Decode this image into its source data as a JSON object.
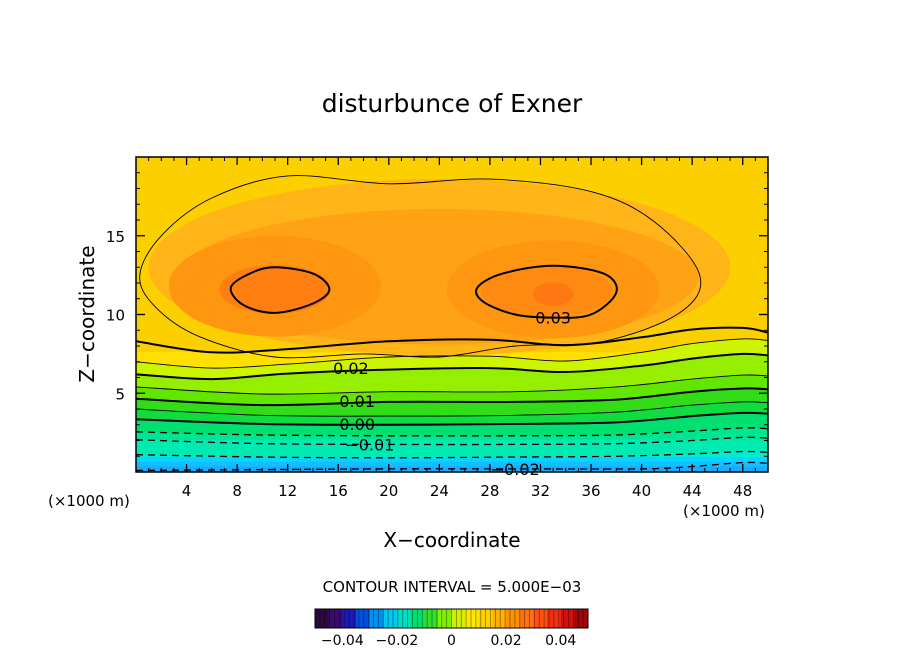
{
  "chart_data": {
    "type": "heatmap",
    "title": "disturbunce of Exner",
    "xlabel": "X−coordinate",
    "ylabel": "Z−coordinate",
    "x_unit_left": "(×1000 m)",
    "x_unit_right": "(×1000 m)",
    "xlim": [
      0,
      50
    ],
    "ylim": [
      0,
      20
    ],
    "x_ticks": [
      "4",
      "8",
      "12",
      "16",
      "20",
      "24",
      "28",
      "32",
      "36",
      "40",
      "44",
      "48"
    ],
    "y_ticks": [
      "5",
      "10",
      "15"
    ],
    "contour_interval_text": "CONTOUR INTERVAL = 5.000E−03",
    "contour_labels": [
      "0.03",
      "0.02",
      "0.01",
      "0.00",
      "−0.01",
      "−0.02"
    ],
    "colorbar": {
      "range": [
        -0.05,
        0.05
      ],
      "tick_labels": [
        "−0.04",
        "−0.02",
        "0",
        "0.02",
        "0.04"
      ],
      "colors": [
        "#2b0a3d",
        "#3a0a6e",
        "#1c1cb5",
        "#0050e0",
        "#0090f0",
        "#00c8f0",
        "#00e0c0",
        "#00e070",
        "#30e030",
        "#80f000",
        "#d0f000",
        "#ffe800",
        "#ffd000",
        "#ffb000",
        "#ff9000",
        "#ff7010",
        "#ff5010",
        "#f03010",
        "#d01010",
        "#a00808"
      ]
    },
    "zones": [
      {
        "z_top": 0.35,
        "level": -0.04,
        "color": "#1fa8ff"
      },
      {
        "z_top": 0.65,
        "level": -0.035,
        "color": "#13c0ff"
      },
      {
        "z_top": 0.95,
        "level": -0.03,
        "color": "#06d6ff"
      },
      {
        "z_top": 1.3,
        "level": -0.025,
        "color": "#00e8ec"
      },
      {
        "z_top": 1.65,
        "level": -0.02,
        "color": "#00eed0"
      },
      {
        "z_top": 2.05,
        "level": -0.015,
        "color": "#00eab2"
      },
      {
        "z_top": 2.45,
        "level": -0.01,
        "color": "#00e690"
      },
      {
        "z_top": 2.9,
        "level": -0.005,
        "color": "#00e070"
      },
      {
        "z_top": 3.4,
        "level": 0.0,
        "color": "#10dc40"
      },
      {
        "z_top": 3.95,
        "level": 0.005,
        "color": "#32dc18"
      },
      {
        "z_top": 4.55,
        "level": 0.01,
        "color": "#62e600"
      },
      {
        "z_top": 5.2,
        "level": 0.015,
        "color": "#96ee00"
      },
      {
        "z_top": 5.9,
        "level": 0.02,
        "color": "#cdf400"
      },
      {
        "z_top": 6.7,
        "level": 0.025,
        "color": "#f2f200"
      },
      {
        "z_top": 7.6,
        "level": 0.03,
        "color": "#ffe000"
      }
    ],
    "background_color": "#fbcf00",
    "contours": [
      {
        "value": -0.02,
        "style": "dashed",
        "label": "−0.02",
        "label_x": 30,
        "label_z": 0.2,
        "points": [
          [
            0,
            0.1
          ],
          [
            10,
            0.15
          ],
          [
            20,
            0.2
          ],
          [
            30,
            0.2
          ],
          [
            40,
            0.2
          ],
          [
            44,
            0.35
          ],
          [
            48,
            0.6
          ],
          [
            50,
            0.55
          ]
        ]
      },
      {
        "value": -0.015,
        "style": "dashed",
        "points": [
          [
            0,
            1.1
          ],
          [
            10,
            0.95
          ],
          [
            20,
            0.9
          ],
          [
            30,
            0.95
          ],
          [
            38,
            1.0
          ],
          [
            44,
            1.15
          ],
          [
            48,
            1.3
          ],
          [
            50,
            1.25
          ]
        ]
      },
      {
        "value": -0.01,
        "style": "dashed",
        "label": "−0.01",
        "label_x": 18.5,
        "label_z": 1.75,
        "points": [
          [
            0,
            2.05
          ],
          [
            10,
            1.8
          ],
          [
            20,
            1.75
          ],
          [
            30,
            1.75
          ],
          [
            38,
            1.8
          ],
          [
            44,
            2.0
          ],
          [
            48,
            2.2
          ],
          [
            50,
            2.15
          ]
        ]
      },
      {
        "value": -0.005,
        "style": "dashed",
        "points": [
          [
            0,
            2.55
          ],
          [
            10,
            2.35
          ],
          [
            20,
            2.3
          ],
          [
            30,
            2.3
          ],
          [
            38,
            2.35
          ],
          [
            44,
            2.6
          ],
          [
            48,
            2.8
          ],
          [
            50,
            2.75
          ]
        ]
      },
      {
        "value": 0.0,
        "style": "bold",
        "label": "0.00",
        "label_x": 17.5,
        "label_z": 3.05,
        "points": [
          [
            0,
            3.35
          ],
          [
            10,
            3.05
          ],
          [
            20,
            3.0
          ],
          [
            30,
            3.05
          ],
          [
            38,
            3.15
          ],
          [
            44,
            3.55
          ],
          [
            48,
            3.75
          ],
          [
            50,
            3.7
          ]
        ]
      },
      {
        "value": 0.005,
        "style": "thin",
        "points": [
          [
            0,
            4.0
          ],
          [
            10,
            3.6
          ],
          [
            20,
            3.55
          ],
          [
            30,
            3.6
          ],
          [
            38,
            3.8
          ],
          [
            44,
            4.25
          ],
          [
            48,
            4.45
          ],
          [
            50,
            4.4
          ]
        ]
      },
      {
        "value": 0.01,
        "style": "bold",
        "label": "0.01",
        "label_x": 17.5,
        "label_z": 4.5,
        "points": [
          [
            0,
            4.65
          ],
          [
            10,
            4.25
          ],
          [
            20,
            4.45
          ],
          [
            30,
            4.45
          ],
          [
            38,
            4.6
          ],
          [
            44,
            5.1
          ],
          [
            48,
            5.3
          ],
          [
            50,
            5.25
          ]
        ]
      },
      {
        "value": 0.015,
        "style": "thin",
        "points": [
          [
            0,
            5.4
          ],
          [
            10,
            4.95
          ],
          [
            20,
            5.1
          ],
          [
            30,
            5.1
          ],
          [
            38,
            5.4
          ],
          [
            44,
            5.9
          ],
          [
            48,
            6.15
          ],
          [
            50,
            6.1
          ]
        ]
      },
      {
        "value": 0.02,
        "style": "bold",
        "label": "0.02",
        "label_x": 17,
        "label_z": 6.6,
        "points": [
          [
            0,
            6.2
          ],
          [
            6,
            5.9
          ],
          [
            12,
            6.25
          ],
          [
            20,
            6.5
          ],
          [
            28,
            6.6
          ],
          [
            34,
            6.35
          ],
          [
            40,
            6.75
          ],
          [
            44,
            7.2
          ],
          [
            48,
            7.5
          ],
          [
            50,
            7.4
          ]
        ]
      },
      {
        "value": 0.025,
        "style": "thin",
        "points": [
          [
            0,
            7.0
          ],
          [
            6,
            6.6
          ],
          [
            12,
            6.85
          ],
          [
            20,
            7.3
          ],
          [
            28,
            7.35
          ],
          [
            34,
            7.05
          ],
          [
            40,
            7.6
          ],
          [
            44,
            8.15
          ],
          [
            48,
            8.45
          ],
          [
            50,
            8.35
          ]
        ]
      },
      {
        "value": 0.03,
        "style": "bold",
        "points": [
          [
            0,
            8.3
          ],
          [
            6,
            7.6
          ],
          [
            12,
            7.8
          ],
          [
            20,
            8.3
          ],
          [
            28,
            8.4
          ],
          [
            34,
            8.05
          ],
          [
            40,
            8.55
          ],
          [
            44,
            9.05
          ],
          [
            48,
            9.15
          ],
          [
            50,
            8.85
          ]
        ]
      }
    ],
    "closed_contours": [
      {
        "value": 0.03,
        "style": "thin",
        "points": [
          [
            0.3,
            12.5
          ],
          [
            2,
            15.0
          ],
          [
            6,
            17.4
          ],
          [
            12,
            18.8
          ],
          [
            20,
            18.3
          ],
          [
            28,
            18.6
          ],
          [
            36,
            17.8
          ],
          [
            41,
            15.9
          ],
          [
            44.6,
            12.5
          ],
          [
            43,
            10.1
          ],
          [
            37,
            8.3
          ],
          [
            30,
            8.0
          ],
          [
            24,
            7.3
          ],
          [
            18,
            7.5
          ],
          [
            11,
            7.3
          ],
          [
            5,
            8.6
          ],
          [
            1.5,
            10.5
          ]
        ]
      },
      {
        "value": 0.035,
        "style": "bold",
        "label": "0.03",
        "label_x": 33,
        "label_z": 9.8,
        "points": [
          [
            7.5,
            11.7
          ],
          [
            9,
            12.6
          ],
          [
            11,
            13.0
          ],
          [
            14,
            12.6
          ],
          [
            15.3,
            11.6
          ],
          [
            14,
            10.7
          ],
          [
            11,
            10.1
          ],
          [
            8.5,
            10.6
          ]
        ]
      },
      {
        "value": 0.035,
        "style": "bold",
        "points": [
          [
            27,
            11.7
          ],
          [
            29,
            12.6
          ],
          [
            33,
            13.1
          ],
          [
            37,
            12.6
          ],
          [
            38,
            11.4
          ],
          [
            36,
            10.0
          ],
          [
            33,
            9.8
          ],
          [
            30,
            10.0
          ],
          [
            27.5,
            10.8
          ]
        ]
      }
    ],
    "blobs": [
      {
        "cx": 24,
        "cz": 13.0,
        "rx": 23,
        "rz": 5.6,
        "color": "#ffb418"
      },
      {
        "cx": 24,
        "cz": 12.4,
        "rx": 20.5,
        "rz": 4.3,
        "color": "#ffa214"
      },
      {
        "cx": 11,
        "cz": 11.8,
        "rx": 8.4,
        "rz": 3.2,
        "color": "#ff9610"
      },
      {
        "cx": 33,
        "cz": 11.6,
        "rx": 8.4,
        "rz": 3.1,
        "color": "#ff9610"
      },
      {
        "cx": 11,
        "cz": 11.6,
        "rx": 4.4,
        "rz": 1.55,
        "color": "#ff7f12"
      },
      {
        "cx": 32.5,
        "cz": 11.5,
        "rx": 5.2,
        "rz": 1.6,
        "color": "#ff8a12"
      },
      {
        "cx": 33,
        "cz": 11.3,
        "rx": 1.6,
        "rz": 0.75,
        "color": "#ff7812"
      }
    ]
  }
}
